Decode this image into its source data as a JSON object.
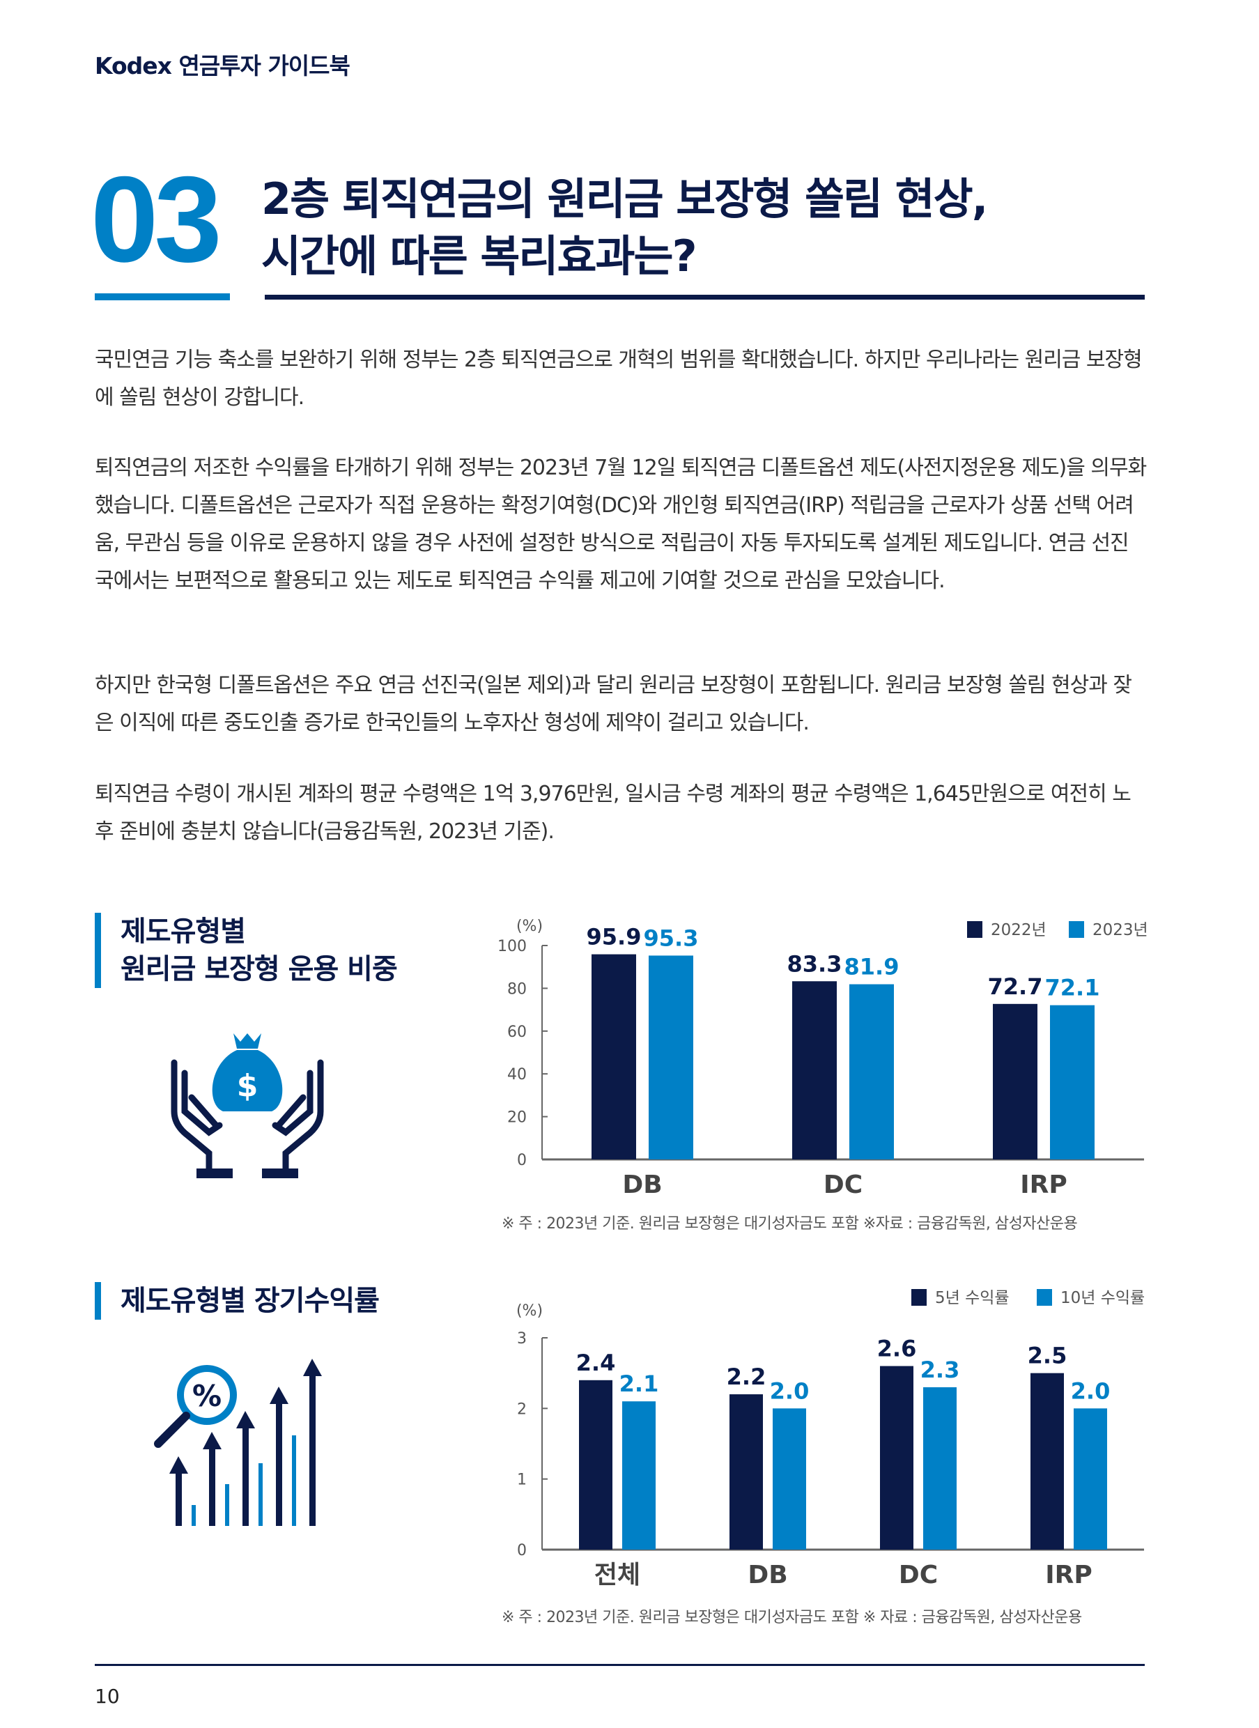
{
  "header": {
    "brand": "Kodex 연금투자 가이드북"
  },
  "section": {
    "number": "03",
    "title_line1": "2층 퇴직연금의 원리금 보장형 쏠림 현상,",
    "title_line2": "시간에 따른 복리효과는?"
  },
  "paragraphs": [
    "국민연금 기능 축소를 보완하기 위해 정부는 2층 퇴직연금으로 개혁의 범위를 확대했습니다. 하지만 우리나라는 원리금 보장형에 쏠림 현상이 강합니다.",
    "퇴직연금의 저조한 수익률을 타개하기 위해 정부는 2023년 7월 12일 퇴직연금 디폴트옵션 제도(사전지정운용 제도)을 의무화했습니다. 디폴트옵션은 근로자가 직접 운용하는 확정기여형(DC)와 개인형 퇴직연금(IRP) 적립금을 근로자가 상품 선택 어려움, 무관심 등을 이유로 운용하지 않을 경우 사전에 설정한 방식으로 적립금이 자동 투자되도록 설계된 제도입니다. 연금 선진국에서는 보편적으로 활용되고 있는 제도로 퇴직연금 수익률 제고에 기여할 것으로 관심을 모았습니다.",
    "하지만 한국형 디폴트옵션은 주요 연금 선진국(일본 제외)과 달리 원리금 보장형이 포함됩니다. 원리금 보장형 쏠림 현상과 잦은 이직에 따른 중도인출 증가로 한국인들의 노후자산 형성에 제약이 걸리고 있습니다.",
    "퇴직연금 수령이 개시된 계좌의 평균 수령액은 1억 3,976만원, 일시금 수령 계좌의 평균 수령액은 1,645만원으로 여전히 노후 준비에 충분치 않습니다(금융감독원, 2023년 기준)."
  ],
  "colors": {
    "navy": "#0b1a48",
    "blue": "#0080c6"
  },
  "chart_data": [
    {
      "type": "bar",
      "title_line1": "제도유형별",
      "title_line2": "원리금 보장형 운용 비중",
      "ylabel": "(%)",
      "ylim": [
        0,
        100
      ],
      "yticks": [
        "0",
        "20",
        "40",
        "60",
        "80",
        "100"
      ],
      "categories": [
        "DB",
        "DC",
        "IRP"
      ],
      "series": [
        {
          "name": "2022년",
          "values": [
            95.9,
            83.3,
            72.7
          ],
          "labels": [
            "95.9",
            "83.3",
            "72.7"
          ]
        },
        {
          "name": "2023년",
          "values": [
            95.3,
            81.9,
            72.1
          ],
          "labels": [
            "95.3",
            "81.9",
            "72.1"
          ]
        }
      ],
      "legend": "top-right",
      "note": "※ 주 : 2023년 기준. 원리금 보장형은 대기성자금도 포함 ※자료 : 금융감독원, 삼성자산운용",
      "icon": "money-bag-hands-icon"
    },
    {
      "type": "bar",
      "title_line1": "제도유형별 장기수익률",
      "ylabel": "(%)",
      "ylim": [
        0,
        3
      ],
      "yticks": [
        "0",
        "1",
        "2",
        "3"
      ],
      "categories": [
        "전체",
        "DB",
        "DC",
        "IRP"
      ],
      "series": [
        {
          "name": "5년 수익률",
          "values": [
            2.4,
            2.2,
            2.6,
            2.5
          ],
          "labels": [
            "2.4",
            "2.2",
            "2.6",
            "2.5"
          ]
        },
        {
          "name": "10년 수익률",
          "values": [
            2.1,
            2.0,
            2.3,
            2.0
          ],
          "labels": [
            "2.1",
            "2.0",
            "2.3",
            "2.0"
          ]
        }
      ],
      "legend": "top-right",
      "note": "※ 주 : 2023년 기준. 원리금 보장형은 대기성자금도 포함 ※ 자료 : 금융감독원, 삼성자산운용",
      "icon": "growth-chart-magnifier-icon"
    }
  ],
  "footer": {
    "page": "10"
  }
}
